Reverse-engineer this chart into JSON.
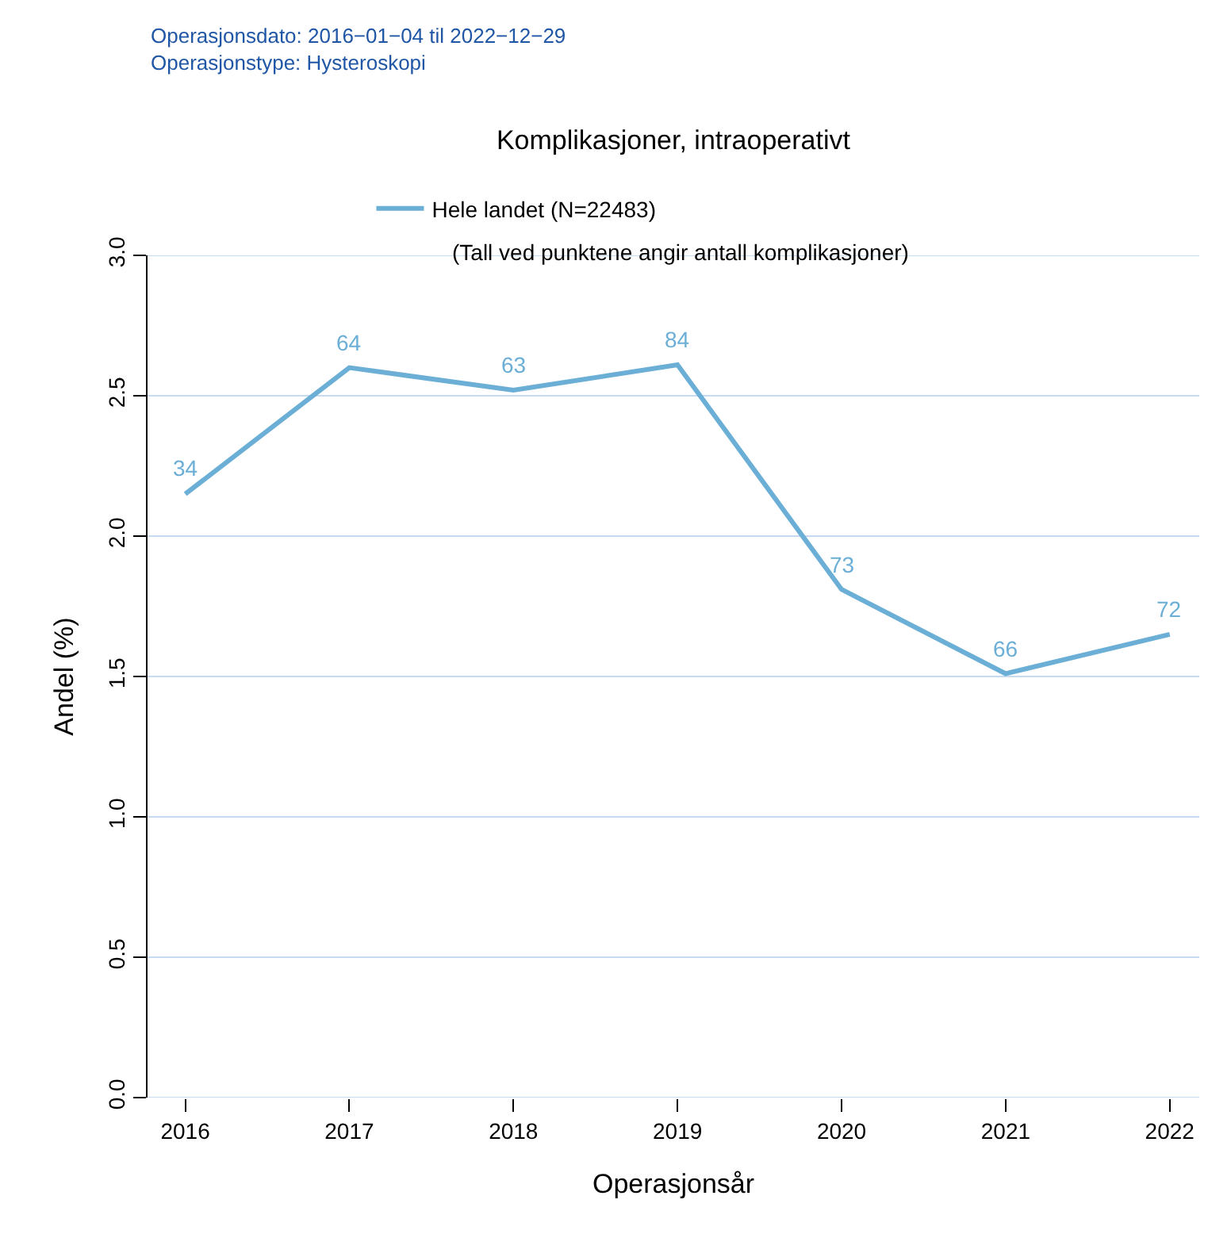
{
  "chart_data": {
    "type": "line",
    "title": "Komplikasjoner, intraoperativt",
    "xlabel": "Operasjonsår",
    "ylabel": "Andel (%)",
    "annotations": [
      "Operasjonsdato: 2016−01−04 til 2022−12−29\nOperasjonstype: Hysteroskopi",
      "(Tall ved punktene angir antall komplikasjoner)",
      {
        "text": "34",
        "x": 2016,
        "y": 2.15
      },
      {
        "text": "64",
        "x": 2017,
        "y": 2.6
      },
      {
        "text": "63",
        "x": 2018,
        "y": 2.52
      },
      {
        "text": "84",
        "x": 2019,
        "y": 2.61
      },
      {
        "text": "73",
        "x": 2020,
        "y": 1.81
      },
      {
        "text": "66",
        "x": 2021,
        "y": 1.51
      },
      {
        "text": "72",
        "x": 2022,
        "y": 1.65
      }
    ],
    "x": [
      2016,
      2017,
      2018,
      2019,
      2020,
      2021,
      2022
    ],
    "series": [
      {
        "name": "Hele landet (N=22483)",
        "color": "#6baed6",
        "values": [
          2.15,
          2.6,
          2.52,
          2.61,
          1.81,
          1.51,
          1.65
        ]
      }
    ],
    "xlim": [
      2015.77,
      2022.18
    ],
    "xticks": [
      2016,
      2017,
      2018,
      2019,
      2020,
      2021,
      2022
    ],
    "ylim": [
      0,
      3.0
    ],
    "yticks": [
      {
        "value": 0,
        "label": "0.0"
      },
      {
        "value": 0.5,
        "label": "0.5"
      },
      {
        "value": 1,
        "label": "1.0"
      },
      {
        "value": 1.5,
        "label": "1.5"
      },
      {
        "value": 2,
        "label": "2.0"
      },
      {
        "value": 2.5,
        "label": "2.5"
      },
      {
        "value": 3,
        "label": "3.0"
      }
    ],
    "grid": "y",
    "legend": "top"
  }
}
